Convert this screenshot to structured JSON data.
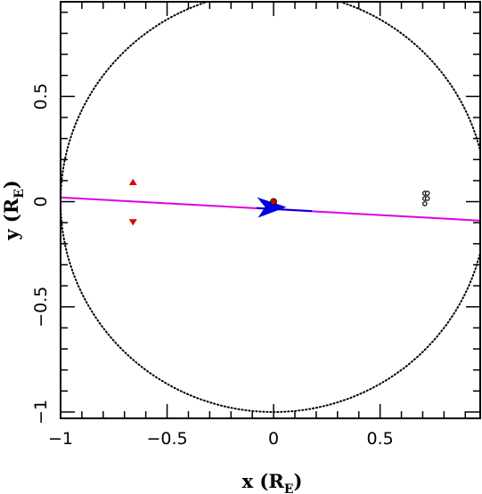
{
  "chart_data": {
    "type": "scatter",
    "xlabel": {
      "main": "x (R",
      "sub": "E",
      "close": ")"
    },
    "ylabel": {
      "main": "y (R",
      "sub": "E",
      "close": ")"
    },
    "xlim": [
      -1.0,
      0.97
    ],
    "ylim": [
      -1.03,
      0.95
    ],
    "x_ticks": [
      {
        "value": -1,
        "label": "−1"
      },
      {
        "value": -0.5,
        "label": "−0.5"
      },
      {
        "value": 0,
        "label": "0"
      },
      {
        "value": 0.5,
        "label": "0.5"
      }
    ],
    "y_ticks": [
      {
        "value": -1,
        "label": "−1"
      },
      {
        "value": -0.5,
        "label": "−0.5"
      },
      {
        "value": 0,
        "label": "0"
      },
      {
        "value": 0.5,
        "label": "0.5"
      }
    ],
    "minor_tick_step": 0.1,
    "grid": false,
    "einstein_ring": {
      "center": [
        0,
        0
      ],
      "radius": 1,
      "style": "dotted",
      "color": "#000000"
    },
    "source_trajectory": {
      "start": [
        -1.0,
        0.02
      ],
      "end": [
        0.97,
        -0.09
      ],
      "color": "#e000e0",
      "highlight_segment": {
        "start": [
          -0.08,
          -0.03
        ],
        "end": [
          0.18,
          -0.045
        ],
        "color": "#0000e0"
      },
      "arrow": {
        "at": [
          -0.04,
          -0.03
        ],
        "direction": "right",
        "color": "#0000e0"
      }
    },
    "lens_position": {
      "x": 0.0,
      "y": 0.0,
      "color": "#cc0000"
    },
    "image_markers": [
      {
        "x": -0.66,
        "y": 0.09,
        "shape": "triangle-up",
        "color": "#e00000"
      },
      {
        "x": -0.66,
        "y": -0.095,
        "shape": "triangle-down",
        "color": "#e00000"
      }
    ],
    "caustic_points": [
      {
        "x": 0.71,
        "y": 0.04
      },
      {
        "x": 0.722,
        "y": 0.04
      },
      {
        "x": 0.71,
        "y": 0.015
      },
      {
        "x": 0.722,
        "y": 0.015
      },
      {
        "x": 0.71,
        "y": -0.01
      }
    ]
  }
}
